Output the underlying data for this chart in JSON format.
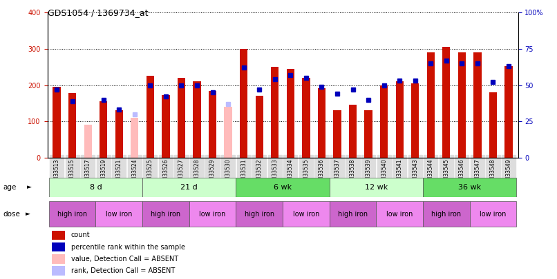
{
  "title": "GDS1054 / 1369734_at",
  "samples": [
    "GSM33513",
    "GSM33515",
    "GSM33517",
    "GSM33519",
    "GSM33521",
    "GSM33524",
    "GSM33525",
    "GSM33526",
    "GSM33527",
    "GSM33528",
    "GSM33529",
    "GSM33530",
    "GSM33531",
    "GSM33532",
    "GSM33533",
    "GSM33534",
    "GSM33535",
    "GSM33536",
    "GSM33537",
    "GSM33538",
    "GSM33539",
    "GSM33540",
    "GSM33541",
    "GSM33543",
    "GSM33544",
    "GSM33545",
    "GSM33546",
    "GSM33547",
    "GSM33548",
    "GSM33549"
  ],
  "count": [
    195,
    178,
    null,
    155,
    130,
    null,
    225,
    172,
    220,
    210,
    183,
    null,
    300,
    170,
    250,
    245,
    220,
    192,
    130,
    145,
    130,
    200,
    210,
    205,
    290,
    305,
    290,
    290,
    180,
    252
  ],
  "absent_count": [
    null,
    null,
    90,
    null,
    null,
    110,
    null,
    null,
    null,
    null,
    null,
    140,
    null,
    null,
    null,
    null,
    null,
    null,
    null,
    null,
    null,
    null,
    null,
    null,
    null,
    null,
    null,
    null,
    null,
    null
  ],
  "percentile": [
    47,
    39,
    null,
    40,
    33,
    null,
    50,
    42,
    50,
    50,
    45,
    null,
    62,
    47,
    54,
    57,
    55,
    49,
    44,
    47,
    40,
    50,
    53,
    53,
    65,
    67,
    65,
    65,
    52,
    63
  ],
  "absent_rank": [
    null,
    null,
    null,
    null,
    null,
    30,
    null,
    null,
    null,
    null,
    null,
    37,
    null,
    null,
    null,
    null,
    null,
    null,
    null,
    null,
    null,
    null,
    null,
    null,
    null,
    null,
    null,
    null,
    null,
    null
  ],
  "age_groups": [
    {
      "label": "8 d",
      "start": 0,
      "end": 5,
      "color": "#ccffcc"
    },
    {
      "label": "21 d",
      "start": 6,
      "end": 11,
      "color": "#ccffcc"
    },
    {
      "label": "6 wk",
      "start": 12,
      "end": 17,
      "color": "#66dd66"
    },
    {
      "label": "12 wk",
      "start": 18,
      "end": 23,
      "color": "#ccffcc"
    },
    {
      "label": "36 wk",
      "start": 24,
      "end": 29,
      "color": "#66dd66"
    }
  ],
  "dose_groups": [
    {
      "label": "high iron",
      "start": 0,
      "end": 2,
      "color": "#cc66cc"
    },
    {
      "label": "low iron",
      "start": 3,
      "end": 5,
      "color": "#ee88ee"
    },
    {
      "label": "high iron",
      "start": 6,
      "end": 8,
      "color": "#cc66cc"
    },
    {
      "label": "low iron",
      "start": 9,
      "end": 11,
      "color": "#ee88ee"
    },
    {
      "label": "high iron",
      "start": 12,
      "end": 14,
      "color": "#cc66cc"
    },
    {
      "label": "low iron",
      "start": 15,
      "end": 17,
      "color": "#ee88ee"
    },
    {
      "label": "high iron",
      "start": 18,
      "end": 20,
      "color": "#cc66cc"
    },
    {
      "label": "low iron",
      "start": 21,
      "end": 23,
      "color": "#ee88ee"
    },
    {
      "label": "high iron",
      "start": 24,
      "end": 26,
      "color": "#cc66cc"
    },
    {
      "label": "low iron",
      "start": 27,
      "end": 29,
      "color": "#ee88ee"
    }
  ],
  "bar_color": "#cc1100",
  "absent_bar_color": "#ffbbbb",
  "rank_color": "#0000bb",
  "absent_rank_color": "#bbbbff",
  "left_ylim": [
    0,
    400
  ],
  "right_ylim": [
    0,
    100
  ],
  "left_yticks": [
    0,
    100,
    200,
    300,
    400
  ],
  "right_yticks": [
    0,
    25,
    50,
    75,
    100
  ],
  "right_yticklabels": [
    "0",
    "25",
    "50",
    "75",
    "100%"
  ],
  "legend_items": [
    {
      "label": "count",
      "color": "#cc1100"
    },
    {
      "label": "percentile rank within the sample",
      "color": "#0000bb"
    },
    {
      "label": "value, Detection Call = ABSENT",
      "color": "#ffbbbb"
    },
    {
      "label": "rank, Detection Call = ABSENT",
      "color": "#bbbbff"
    }
  ]
}
